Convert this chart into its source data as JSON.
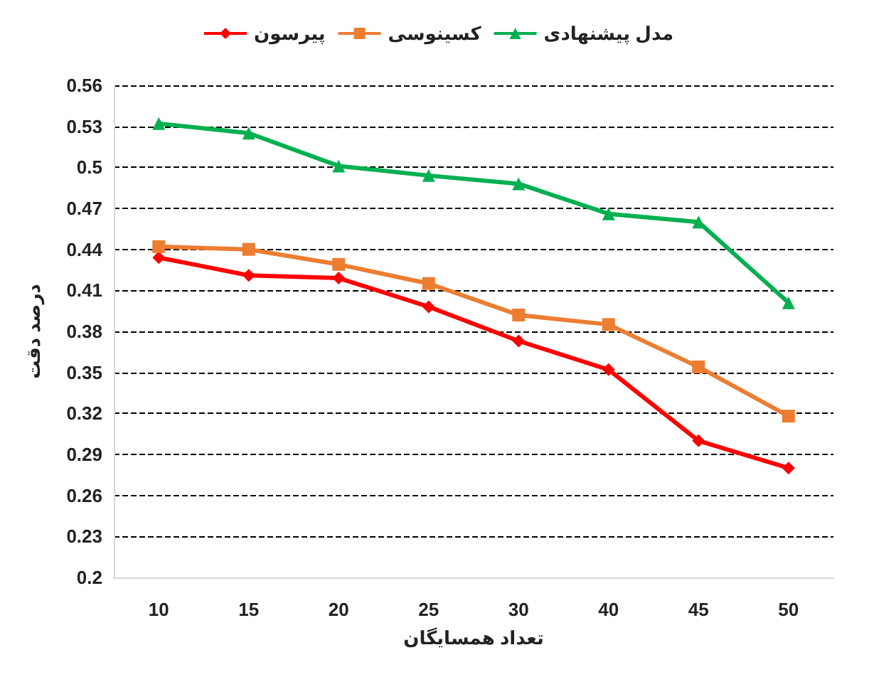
{
  "chart_data": {
    "type": "line",
    "xlabel": "تعداد همسایگان",
    "ylabel": "درصد دقت",
    "categories": [
      "10",
      "15",
      "20",
      "25",
      "30",
      "40",
      "45",
      "50"
    ],
    "series": [
      {
        "name": "پیرسون",
        "color": "#ff0000",
        "marker": "diamond",
        "values": [
          0.434,
          0.421,
          0.419,
          0.398,
          0.373,
          0.352,
          0.3,
          0.28
        ]
      },
      {
        "name": "کسینوسی",
        "color": "#ed7d31",
        "marker": "square",
        "values": [
          0.442,
          0.44,
          0.429,
          0.415,
          0.392,
          0.385,
          0.354,
          0.318
        ]
      },
      {
        "name": "مدل پیشنهادی",
        "color": "#00b050",
        "marker": "triangle",
        "values": [
          0.532,
          0.525,
          0.501,
          0.494,
          0.488,
          0.466,
          0.46,
          0.401
        ]
      }
    ],
    "ylim": [
      0.2,
      0.56
    ],
    "yticks": [
      0.2,
      0.23,
      0.26,
      0.29,
      0.32,
      0.35,
      0.38,
      0.41,
      0.44,
      0.47,
      0.5,
      0.53,
      0.56
    ],
    "grid": "y",
    "legend": "top",
    "line_style": "solid"
  }
}
